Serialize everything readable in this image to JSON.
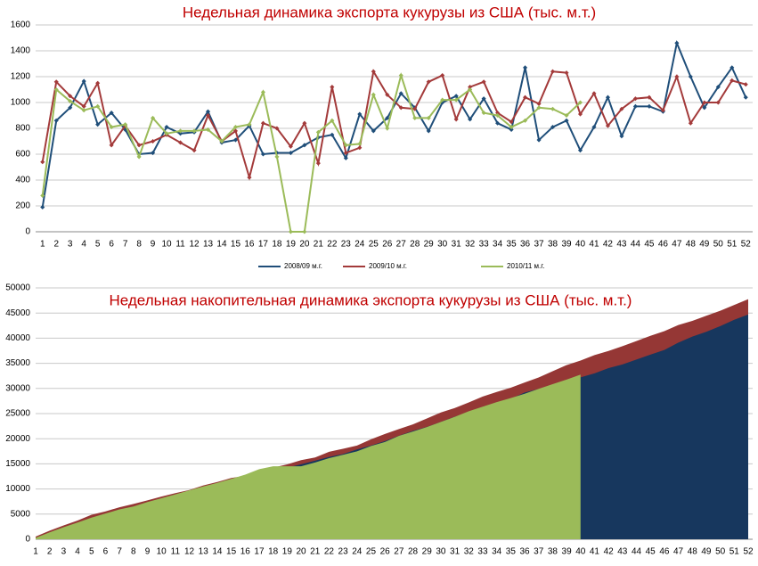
{
  "chart_data": [
    {
      "type": "line",
      "title": "Недельная динамика экспорта кукурузы из США (тыс. м.т.)",
      "categories": [
        1,
        2,
        3,
        4,
        5,
        6,
        7,
        8,
        9,
        10,
        11,
        12,
        13,
        14,
        15,
        16,
        17,
        18,
        19,
        20,
        21,
        22,
        23,
        24,
        25,
        26,
        27,
        28,
        29,
        30,
        31,
        32,
        33,
        34,
        35,
        36,
        37,
        38,
        39,
        40,
        41,
        42,
        43,
        44,
        45,
        46,
        47,
        48,
        49,
        50,
        51,
        52
      ],
      "ylim": [
        0,
        1600
      ],
      "yticks": [
        0,
        200,
        400,
        600,
        800,
        1000,
        1200,
        1400,
        1600
      ],
      "grid": true,
      "legend": "bottom",
      "series": [
        {
          "name": "2008/09 м.г.",
          "color": "#1f4e79",
          "values": [
            190,
            860,
            960,
            1165,
            830,
            920,
            790,
            600,
            610,
            810,
            760,
            770,
            930,
            690,
            710,
            820,
            600,
            610,
            610,
            670,
            730,
            750,
            570,
            910,
            780,
            880,
            1070,
            960,
            780,
            1000,
            1050,
            870,
            1030,
            840,
            790,
            1270,
            710,
            810,
            860,
            630,
            810,
            1040,
            740,
            970,
            970,
            930,
            1460,
            1200,
            960,
            1120,
            1270,
            1040
          ]
        },
        {
          "name": "2009/10 м.г.",
          "color": "#a33a3a",
          "values": [
            540,
            1160,
            1050,
            970,
            1150,
            670,
            820,
            670,
            700,
            750,
            690,
            630,
            900,
            700,
            780,
            420,
            840,
            800,
            660,
            840,
            530,
            1120,
            610,
            650,
            1240,
            1060,
            960,
            950,
            1160,
            1210,
            870,
            1120,
            1160,
            920,
            850,
            1040,
            990,
            1240,
            1230,
            910,
            1070,
            820,
            950,
            1030,
            1040,
            940,
            1200,
            840,
            1000,
            1000,
            1170,
            1140
          ]
        },
        {
          "name": "2010/11 м.г.",
          "color": "#9bbb59",
          "values": [
            280,
            1100,
            1010,
            940,
            970,
            810,
            830,
            580,
            880,
            760,
            780,
            780,
            790,
            700,
            810,
            830,
            1080,
            580,
            0,
            0,
            770,
            860,
            670,
            680,
            1060,
            800,
            1210,
            880,
            880,
            1020,
            1020,
            1100,
            920,
            900,
            810,
            860,
            960,
            950,
            900,
            1000,
            null,
            null,
            null,
            null,
            null,
            null,
            null,
            null,
            null,
            null,
            null,
            null
          ]
        }
      ]
    },
    {
      "type": "area",
      "title": "Недельная накопительная динамика экспорта кукурузы из США (тыс. м.т.)",
      "categories": [
        1,
        2,
        3,
        4,
        5,
        6,
        7,
        8,
        9,
        10,
        11,
        12,
        13,
        14,
        15,
        16,
        17,
        18,
        19,
        20,
        21,
        22,
        23,
        24,
        25,
        26,
        27,
        28,
        29,
        30,
        31,
        32,
        33,
        34,
        35,
        36,
        37,
        38,
        39,
        40,
        41,
        42,
        43,
        44,
        45,
        46,
        47,
        48,
        49,
        50,
        51,
        52
      ],
      "ylim": [
        0,
        50000
      ],
      "yticks": [
        0,
        5000,
        10000,
        15000,
        20000,
        25000,
        30000,
        35000,
        40000,
        45000,
        50000
      ],
      "grid": true,
      "series": [
        {
          "color": "#953735",
          "values": [
            540,
            1700,
            2750,
            3720,
            4870,
            5540,
            6360,
            7030,
            7730,
            8480,
            9170,
            9800,
            10700,
            11400,
            12180,
            12600,
            13440,
            14240,
            14900,
            15740,
            16270,
            17390,
            18000,
            18650,
            19890,
            20950,
            21910,
            22860,
            24020,
            25230,
            26100,
            27220,
            28380,
            29300,
            30150,
            31190,
            32180,
            33420,
            34650,
            35560,
            36630,
            37450,
            38400,
            39430,
            40470,
            41410,
            42610,
            43450,
            44450,
            45450,
            46620,
            47760
          ]
        },
        {
          "color": "#17375e",
          "values": [
            190,
            1050,
            2010,
            3175,
            4005,
            4925,
            5715,
            6315,
            6925,
            7735,
            8495,
            9265,
            10195,
            10885,
            11595,
            12415,
            13015,
            13625,
            14235,
            14905,
            15635,
            16385,
            16955,
            17865,
            18645,
            19525,
            20595,
            21555,
            22335,
            23335,
            24385,
            25255,
            26285,
            27125,
            27915,
            29185,
            29895,
            30705,
            31565,
            32195,
            33005,
            34045,
            34785,
            35755,
            36725,
            37655,
            39115,
            40315,
            41275,
            42395,
            43665,
            44705
          ]
        },
        {
          "color": "#9bbb59",
          "values": [
            280,
            1380,
            2390,
            3330,
            4300,
            5110,
            5940,
            6520,
            7400,
            8160,
            8940,
            9720,
            10510,
            11210,
            12020,
            12850,
            13930,
            14510,
            14510,
            14510,
            15280,
            16140,
            16810,
            17490,
            18550,
            19350,
            20560,
            21440,
            22320,
            23340,
            24360,
            25460,
            26380,
            27280,
            28090,
            28950,
            29910,
            30860,
            31760,
            32760,
            null,
            null,
            null,
            null,
            null,
            null,
            null,
            null,
            null,
            null,
            null,
            null
          ]
        }
      ]
    }
  ]
}
